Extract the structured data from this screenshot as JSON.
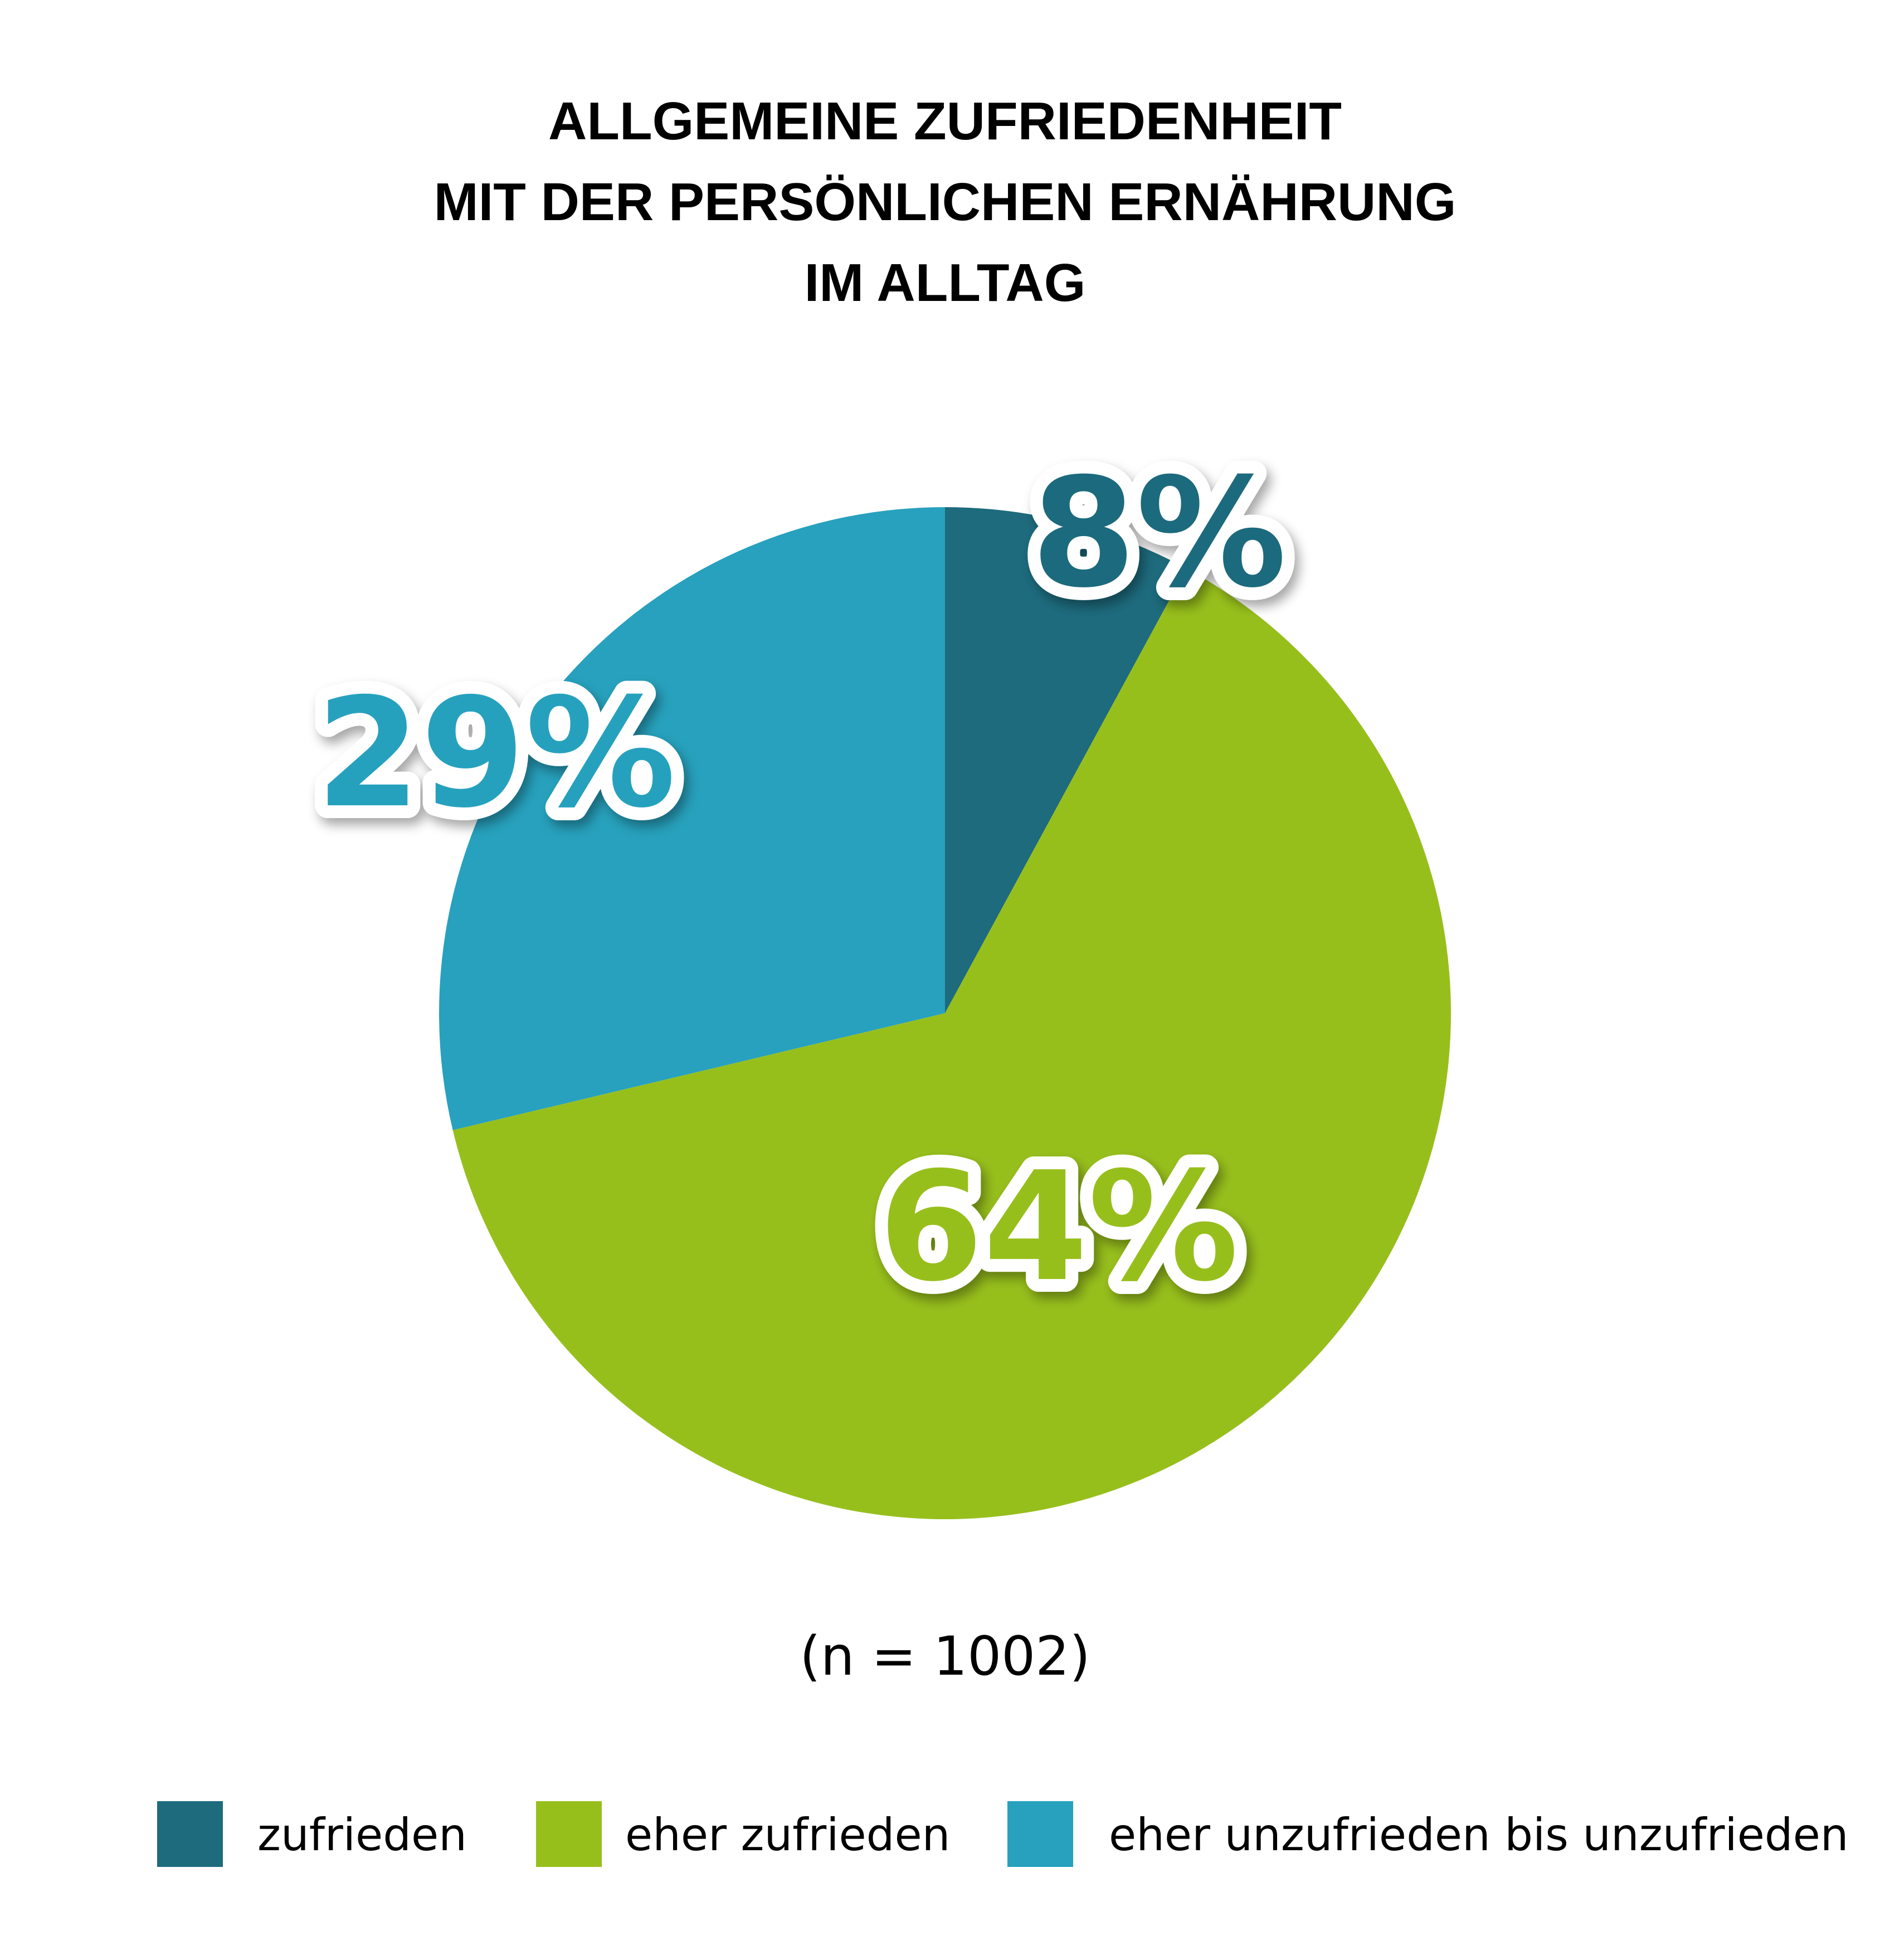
{
  "chart_data": {
    "type": "pie",
    "title": [
      "ALLGEMEINE ZUFRIEDENHEIT",
      "MIT DER PERSÖNLICHEN ERNÄHRUNG",
      "IM ALLTAG"
    ],
    "note": "(n = 1002)",
    "start_angle_deg": 0,
    "direction": "clockwise",
    "legend_position": "bottom",
    "slices": [
      {
        "label": "zufrieden",
        "value": 8,
        "value_label": "8%",
        "color": "#1d6b7d"
      },
      {
        "label": "eher zufrieden",
        "value": 64,
        "value_label": "64%",
        "color": "#97bf1c"
      },
      {
        "label": "eher unzufrieden bis unzufrieden",
        "value": 29,
        "value_label": "29%",
        "color": "#27a1bd"
      }
    ]
  }
}
